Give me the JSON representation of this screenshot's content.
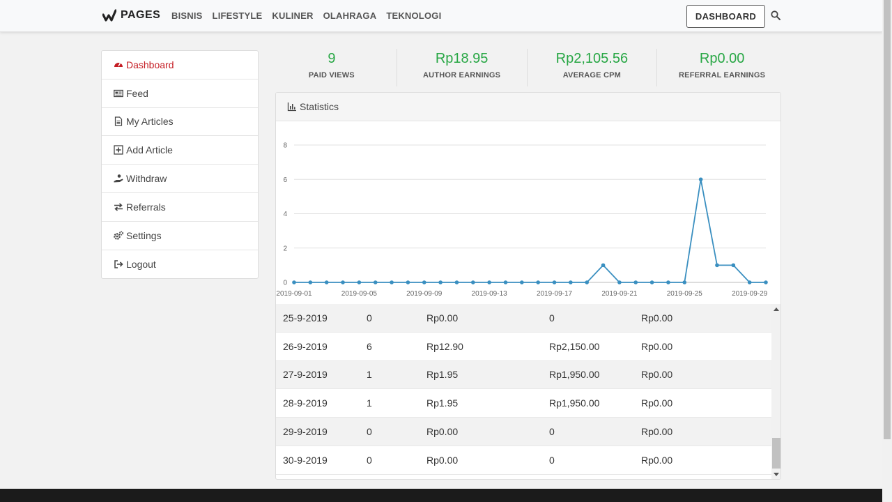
{
  "brand": {
    "name": "PAGES"
  },
  "nav": {
    "items": [
      "BISNIS",
      "LIFESTYLE",
      "KULINER",
      "OLAHRAGA",
      "TEKNOLOGI"
    ],
    "dashboard_label": "DASHBOARD"
  },
  "sidebar": {
    "items": [
      {
        "label": "Dashboard",
        "icon": "gauge-icon"
      },
      {
        "label": "Feed",
        "icon": "newspaper-icon"
      },
      {
        "label": "My Articles",
        "icon": "file-icon"
      },
      {
        "label": "Add Article",
        "icon": "plus-square-icon"
      },
      {
        "label": "Withdraw",
        "icon": "hand-coin-icon"
      },
      {
        "label": "Referrals",
        "icon": "exchange-icon"
      },
      {
        "label": "Settings",
        "icon": "cogs-icon"
      },
      {
        "label": "Logout",
        "icon": "sign-out-icon"
      }
    ]
  },
  "stats": [
    {
      "value": "9",
      "label": "PAID VIEWS"
    },
    {
      "value": "Rp18.95",
      "label": "AUTHOR EARNINGS"
    },
    {
      "value": "Rp2,105.56",
      "label": "AVERAGE CPM"
    },
    {
      "value": "Rp0.00",
      "label": "REFERRAL EARNINGS"
    }
  ],
  "statistics": {
    "title": "Statistics"
  },
  "chart_data": {
    "type": "line",
    "x": [
      "2019-09-01",
      "2019-09-02",
      "2019-09-03",
      "2019-09-04",
      "2019-09-05",
      "2019-09-06",
      "2019-09-07",
      "2019-09-08",
      "2019-09-09",
      "2019-09-10",
      "2019-09-11",
      "2019-09-12",
      "2019-09-13",
      "2019-09-14",
      "2019-09-15",
      "2019-09-16",
      "2019-09-17",
      "2019-09-18",
      "2019-09-19",
      "2019-09-20",
      "2019-09-21",
      "2019-09-22",
      "2019-09-23",
      "2019-09-24",
      "2019-09-25",
      "2019-09-26",
      "2019-09-27",
      "2019-09-28",
      "2019-09-29",
      "2019-09-30"
    ],
    "values": [
      0,
      0,
      0,
      0,
      0,
      0,
      0,
      0,
      0,
      0,
      0,
      0,
      0,
      0,
      0,
      0,
      0,
      0,
      0,
      1,
      0,
      0,
      0,
      0,
      0,
      6,
      1,
      1,
      0,
      0
    ],
    "x_tick_labels": [
      "2019-09-01",
      "2019-09-05",
      "2019-09-09",
      "2019-09-13",
      "2019-09-17",
      "2019-09-21",
      "2019-09-25",
      "2019-09-29"
    ],
    "y_ticks": [
      0,
      2,
      4,
      6,
      8
    ],
    "ylim": [
      0,
      8
    ],
    "grid": true,
    "color": "#3a8fc0"
  },
  "table": {
    "rows": [
      [
        "25-9-2019",
        "0",
        "Rp0.00",
        "0",
        "Rp0.00"
      ],
      [
        "26-9-2019",
        "6",
        "Rp12.90",
        "Rp2,150.00",
        "Rp0.00"
      ],
      [
        "27-9-2019",
        "1",
        "Rp1.95",
        "Rp1,950.00",
        "Rp0.00"
      ],
      [
        "28-9-2019",
        "1",
        "Rp1.95",
        "Rp1,950.00",
        "Rp0.00"
      ],
      [
        "29-9-2019",
        "0",
        "Rp0.00",
        "0",
        "Rp0.00"
      ],
      [
        "30-9-2019",
        "0",
        "Rp0.00",
        "0",
        "Rp0.00"
      ]
    ]
  },
  "colors": {
    "accent": "#c51d24",
    "green": "#28a745",
    "line": "#3a8fc0"
  }
}
